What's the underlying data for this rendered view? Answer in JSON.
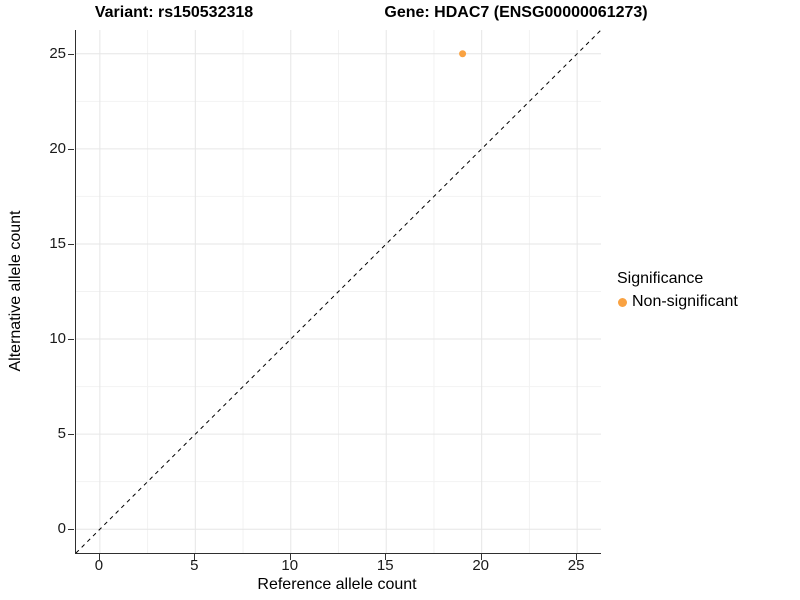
{
  "titles": {
    "variant": "Variant: rs150532318",
    "gene": "Gene: HDAC7 (ENSG00000061273)"
  },
  "chart_data": {
    "type": "scatter",
    "title": "Variant: rs150532318    Gene: HDAC7 (ENSG00000061273)",
    "xlabel": "Reference allele count",
    "ylabel": "Alternative allele count",
    "xlim": [
      -1.25,
      26.25
    ],
    "ylim": [
      -1.25,
      26.25
    ],
    "x_ticks": [
      0,
      5,
      10,
      15,
      20,
      25
    ],
    "y_ticks": [
      0,
      5,
      10,
      15,
      20,
      25
    ],
    "x_minor_ticks": [
      2.5,
      7.5,
      12.5,
      17.5,
      22.5
    ],
    "y_minor_ticks": [
      2.5,
      7.5,
      12.5,
      17.5,
      22.5
    ],
    "grid": true,
    "series": [
      {
        "name": "Non-significant",
        "color": "#F9A242",
        "points": [
          {
            "x": 19,
            "y": 25
          }
        ]
      }
    ],
    "reference_line": {
      "slope": 1,
      "intercept": 0,
      "style": "dashed",
      "color": "#000000"
    },
    "legend": {
      "title": "Significance",
      "position": "right",
      "items": [
        {
          "label": "Non-significant",
          "color": "#F9A242"
        }
      ]
    }
  },
  "colors": {
    "grid_major": "#e6e6e6",
    "grid_minor": "#f2f2f2",
    "axis_line": "#2f2f2f",
    "point_orange": "#F9A242"
  }
}
